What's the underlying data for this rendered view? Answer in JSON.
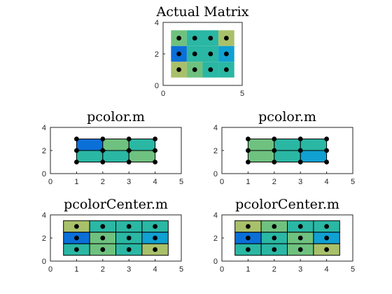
{
  "chart_data": [
    {
      "type": "heatmap",
      "title": "Actual Matrix",
      "xlim": [
        0,
        5
      ],
      "ylim": [
        0,
        4
      ],
      "xticks": [
        "0",
        "5"
      ],
      "yticks": [
        "0",
        "2",
        "4"
      ],
      "x": [
        1,
        2,
        3,
        4
      ],
      "y": [
        1,
        2,
        3
      ],
      "values": [
        [
          0.5,
          0.3,
          0.4,
          0.8
        ],
        [
          0.05,
          0.4,
          0.3,
          0.15
        ],
        [
          0.8,
          0.5,
          0.3,
          0.3
        ]
      ],
      "points": [
        [
          1,
          3
        ],
        [
          2,
          3
        ],
        [
          3,
          3
        ],
        [
          4,
          3
        ],
        [
          1,
          2
        ],
        [
          2,
          2
        ],
        [
          3,
          2
        ],
        [
          4,
          2
        ],
        [
          1,
          1
        ],
        [
          2,
          1
        ],
        [
          3,
          1
        ],
        [
          4,
          1
        ]
      ]
    },
    {
      "type": "heatmap",
      "title": "pcolor.m",
      "xlim": [
        0,
        5
      ],
      "ylim": [
        0,
        4
      ],
      "xticks": [
        "0",
        "1",
        "2",
        "3",
        "4",
        "5"
      ],
      "yticks": [
        "0",
        "2",
        "4"
      ],
      "edges_x": [
        1,
        2,
        3,
        4
      ],
      "edges_y": [
        1,
        2,
        3
      ],
      "values": [
        [
          0.05,
          0.55,
          0.35
        ],
        [
          0.45,
          0.3,
          0.6
        ]
      ],
      "rounded_corners": true,
      "points": [
        [
          1,
          3
        ],
        [
          2,
          3
        ],
        [
          3,
          3
        ],
        [
          4,
          3
        ],
        [
          1,
          2
        ],
        [
          2,
          2
        ],
        [
          3,
          2
        ],
        [
          4,
          2
        ],
        [
          1,
          1
        ],
        [
          2,
          1
        ],
        [
          3,
          1
        ],
        [
          4,
          1
        ]
      ]
    },
    {
      "type": "heatmap",
      "title": "pcolor.m",
      "xlim": [
        0,
        5
      ],
      "ylim": [
        0,
        4
      ],
      "xticks": [
        "0",
        "1",
        "2",
        "3",
        "4",
        "5"
      ],
      "yticks": [
        "0",
        "2",
        "4"
      ],
      "edges_x": [
        1,
        2,
        3,
        4
      ],
      "edges_y": [
        1,
        2,
        3
      ],
      "values": [
        [
          0.55,
          0.45,
          0.3
        ],
        [
          0.5,
          0.3,
          0.15
        ]
      ],
      "rounded_corners": false,
      "points": [
        [
          1,
          3
        ],
        [
          2,
          3
        ],
        [
          3,
          3
        ],
        [
          4,
          3
        ],
        [
          1,
          2
        ],
        [
          2,
          2
        ],
        [
          3,
          2
        ],
        [
          4,
          2
        ],
        [
          1,
          1
        ],
        [
          2,
          1
        ],
        [
          3,
          1
        ],
        [
          4,
          1
        ]
      ]
    },
    {
      "type": "heatmap",
      "title": "pcolorCenter.m",
      "xlim": [
        0,
        5
      ],
      "ylim": [
        0,
        4
      ],
      "xticks": [
        "0",
        "1",
        "2",
        "3",
        "4",
        "5"
      ],
      "yticks": [
        "0",
        "2",
        "4"
      ],
      "x": [
        1,
        2,
        3,
        4
      ],
      "y": [
        1,
        2,
        3
      ],
      "values": [
        [
          0.8,
          0.45,
          0.4,
          0.3
        ],
        [
          0.05,
          0.5,
          0.3,
          0.2
        ],
        [
          0.45,
          0.5,
          0.3,
          0.8
        ]
      ],
      "points": [
        [
          1,
          3
        ],
        [
          2,
          3
        ],
        [
          3,
          3
        ],
        [
          4,
          3
        ],
        [
          1,
          2
        ],
        [
          2,
          2
        ],
        [
          3,
          2
        ],
        [
          4,
          2
        ],
        [
          1,
          1
        ],
        [
          2,
          1
        ],
        [
          3,
          1
        ],
        [
          4,
          1
        ]
      ]
    },
    {
      "type": "heatmap",
      "title": "pcolorCenter.m",
      "xlim": [
        0,
        5
      ],
      "ylim": [
        0,
        4
      ],
      "xticks": [
        "0",
        "1",
        "2",
        "3",
        "4",
        "5"
      ],
      "yticks": [
        "0",
        "2",
        "4"
      ],
      "x": [
        1,
        2,
        3,
        4
      ],
      "y": [
        1,
        2,
        3
      ],
      "values": [
        [
          0.8,
          0.5,
          0.45,
          0.3
        ],
        [
          0.05,
          0.3,
          0.5,
          0.15
        ],
        [
          0.45,
          0.35,
          0.5,
          0.8
        ]
      ],
      "points": [
        [
          1,
          3
        ],
        [
          2,
          3
        ],
        [
          3,
          3
        ],
        [
          4,
          3
        ],
        [
          1,
          2
        ],
        [
          2,
          2
        ],
        [
          3,
          2
        ],
        [
          4,
          2
        ],
        [
          1,
          1
        ],
        [
          2,
          1
        ],
        [
          3,
          1
        ],
        [
          4,
          1
        ]
      ]
    }
  ],
  "colormap": [
    "#0b6fd8",
    "#10a0d2",
    "#2ab7a4",
    "#6fc17f",
    "#a9c06a",
    "#d7b84e"
  ],
  "point_color": "#000000"
}
